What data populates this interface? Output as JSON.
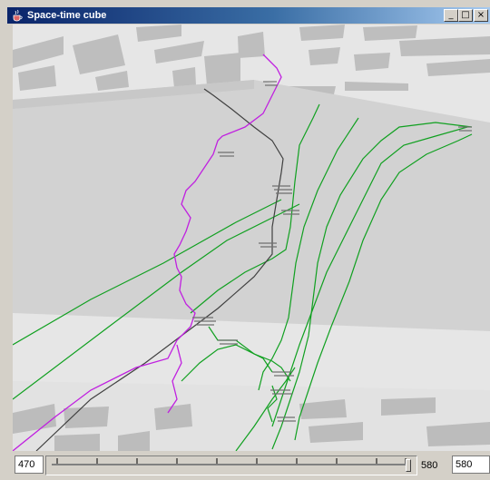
{
  "window": {
    "title": "Space-time cube",
    "minimize_label": "_",
    "maximize_label": "□",
    "close_label": "×",
    "icon": "java-cup-icon"
  },
  "controls": {
    "start_value": "470",
    "end_label": "580",
    "end_value": "580"
  },
  "colors": {
    "track_purple": "#c020e0",
    "track_green": "#10a020",
    "track_black": "#404040",
    "ground": "#e6e6e6",
    "wall": "#cfcfcf",
    "building": "#bcbcbc"
  }
}
